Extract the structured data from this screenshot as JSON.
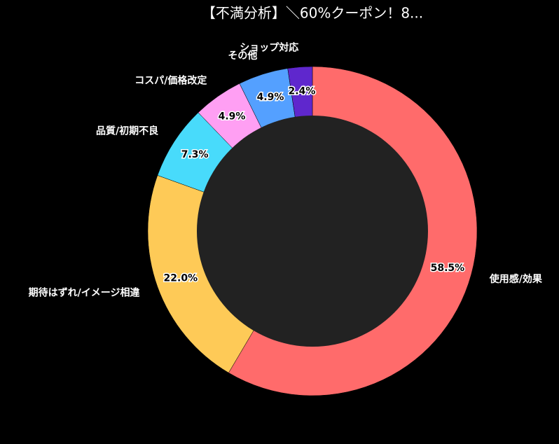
{
  "chart_data": {
    "type": "donut",
    "title": "【不満分析】＼60%クーポン！8...",
    "categories": [
      "使用感/効果",
      "期待はずれ/イメージ相違",
      "品質/初期不良",
      "コスパ/価格改定",
      "その他",
      "ショップ対応"
    ],
    "values": [
      58.5,
      22.0,
      7.3,
      4.9,
      4.9,
      2.4
    ],
    "value_labels": [
      "58.5%",
      "22.0%",
      "7.3%",
      "4.9%",
      "4.9%",
      "2.4%"
    ],
    "colors": [
      "#ff6b6b",
      "#feca57",
      "#48dbfb",
      "#ff9ff3",
      "#54a0ff",
      "#5f27cd"
    ]
  }
}
